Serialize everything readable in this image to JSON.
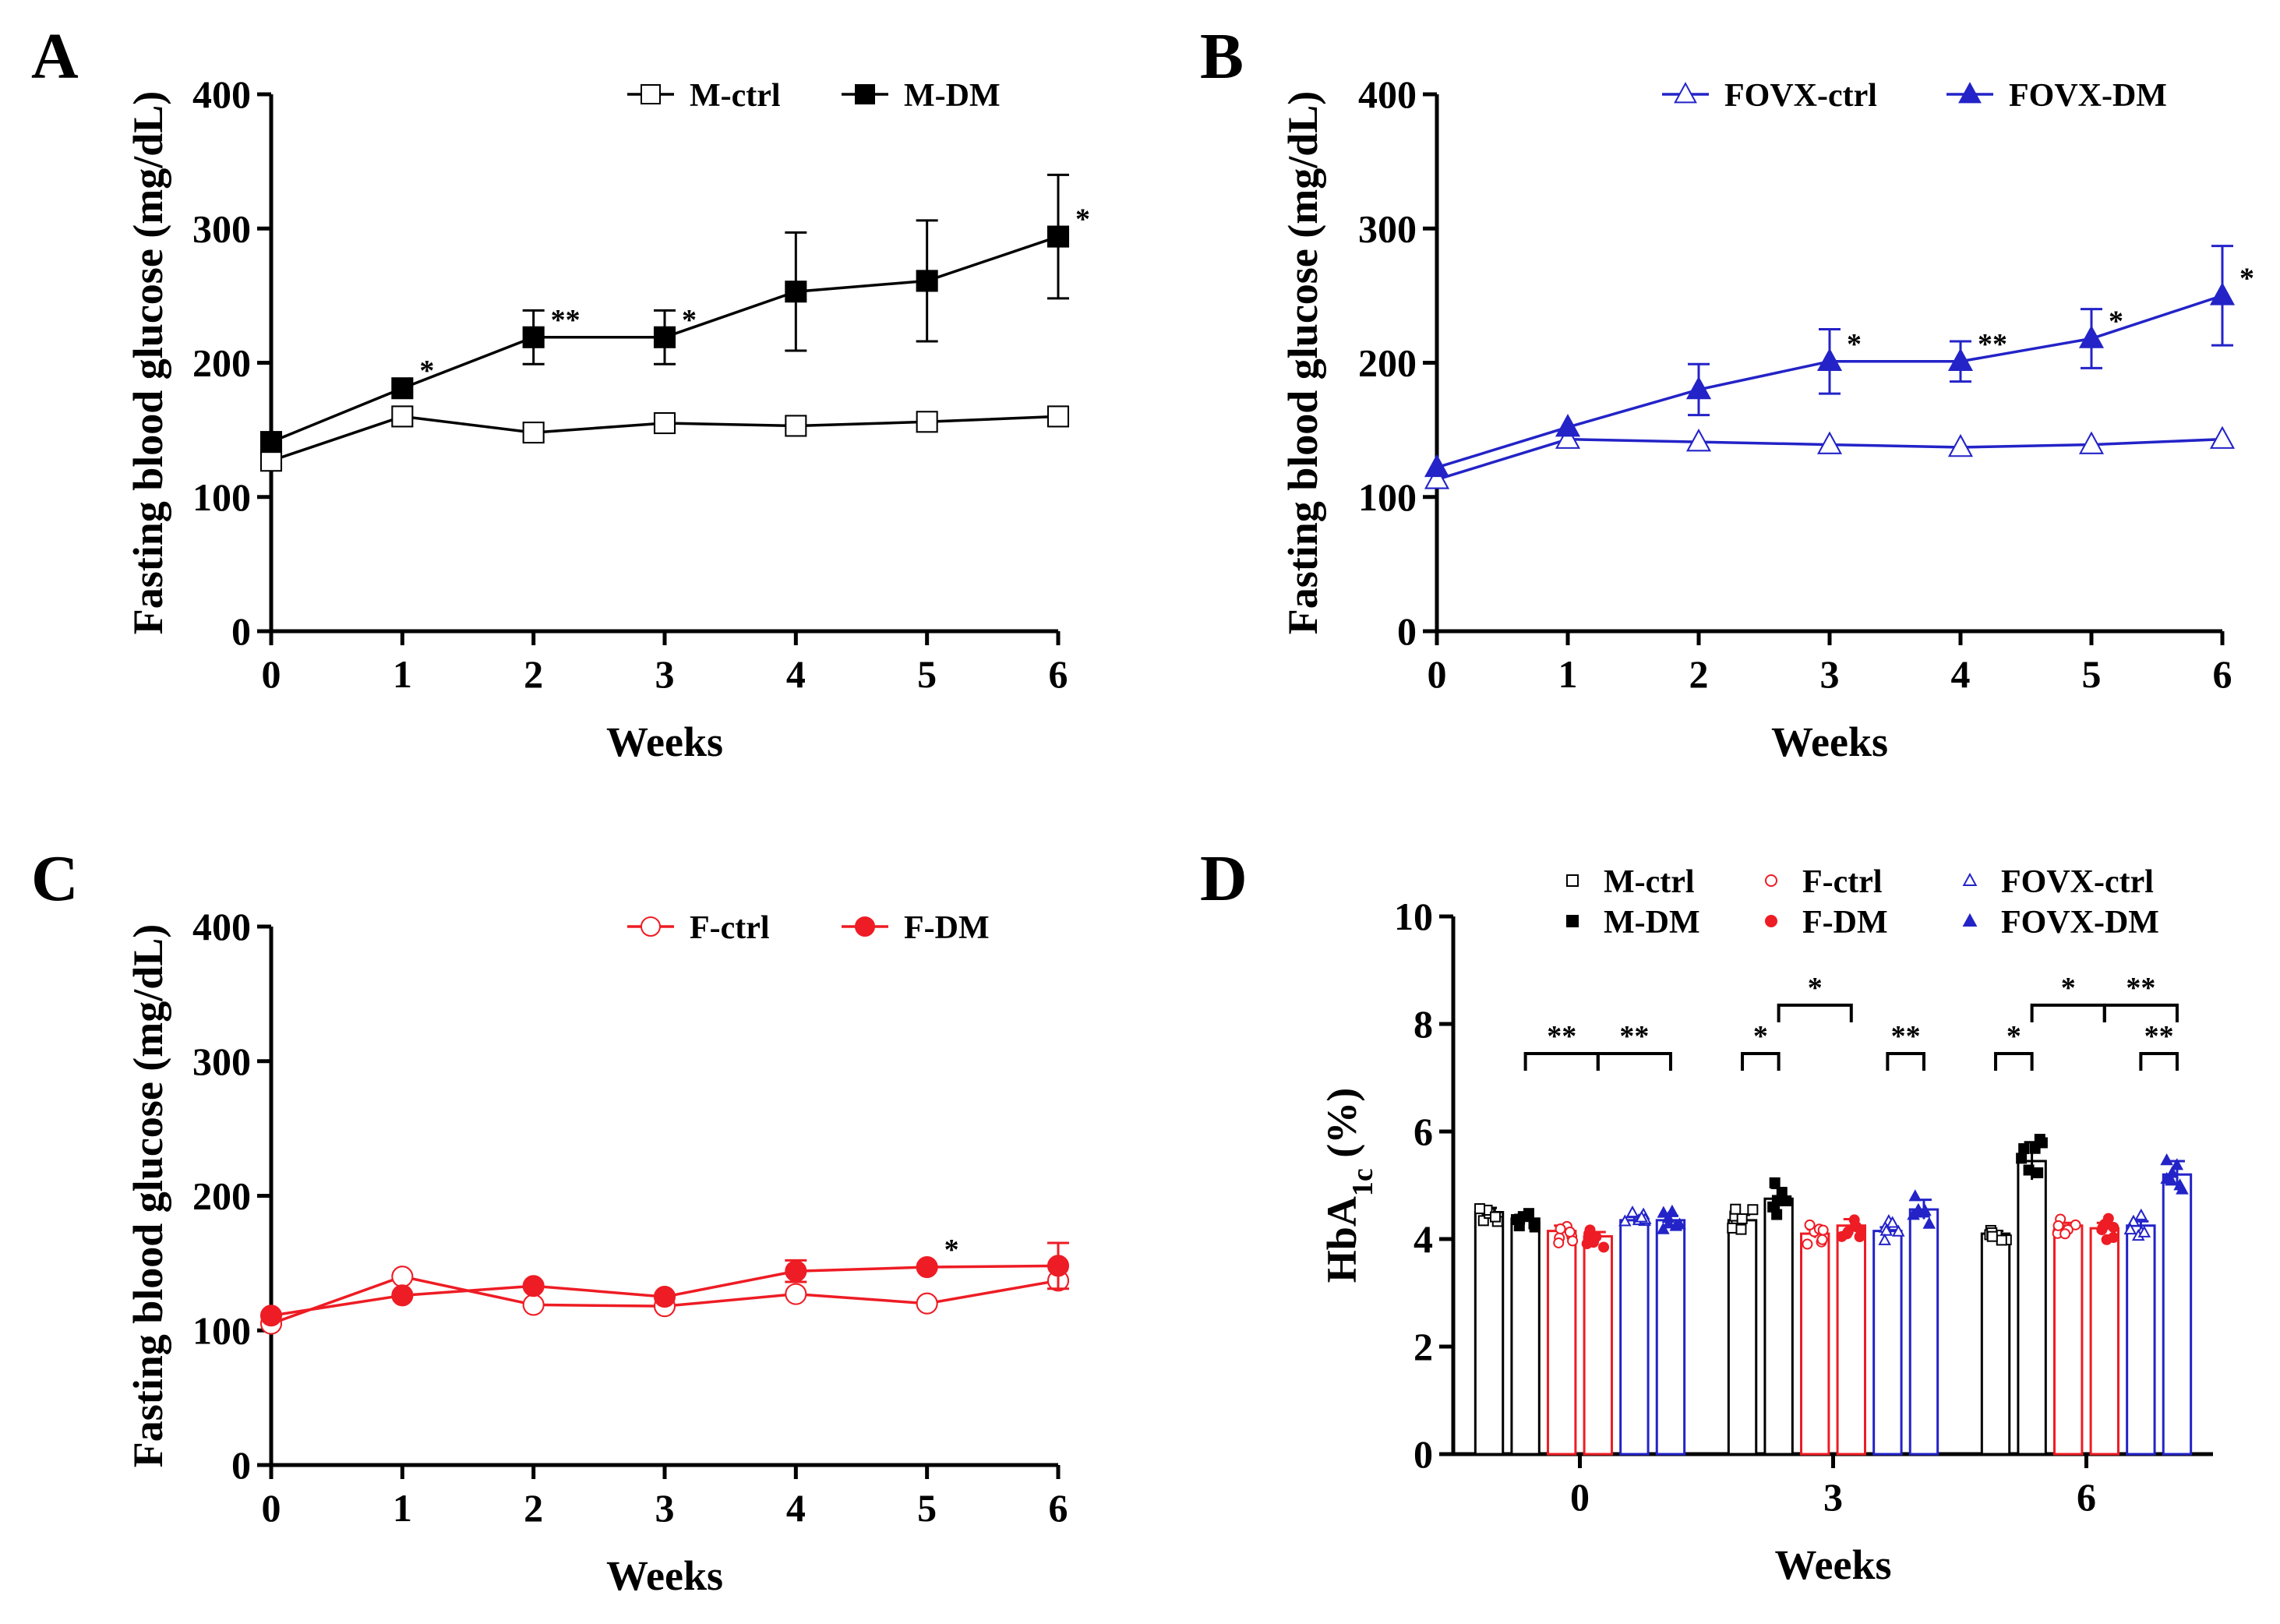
{
  "panels": {
    "A": {
      "letter": "A"
    },
    "B": {
      "letter": "B"
    },
    "C": {
      "letter": "C"
    },
    "D": {
      "letter": "D"
    }
  },
  "chart_data": [
    {
      "panel": "A",
      "type": "line",
      "xlabel": "Weeks",
      "ylabel": "Fasting blood glucose  (mg/dL)",
      "x": [
        0,
        1,
        2,
        3,
        4,
        5,
        6
      ],
      "xlim": [
        0,
        6
      ],
      "ylim": [
        0,
        400
      ],
      "yticks": [
        0,
        100,
        200,
        300,
        400
      ],
      "series": [
        {
          "name": "M-ctrl",
          "marker": "square-open",
          "color": "#000000",
          "values": [
            127,
            160,
            148,
            155,
            153,
            156,
            160
          ],
          "err": [
            4,
            4,
            4,
            4,
            4,
            4,
            4
          ]
        },
        {
          "name": "M-DM",
          "marker": "square-filled",
          "color": "#000000",
          "values": [
            141,
            181,
            219,
            219,
            253,
            261,
            294
          ],
          "err": [
            4,
            4,
            20,
            20,
            44,
            45,
            46
          ]
        }
      ],
      "annotations": [
        {
          "x": 1,
          "y": 181,
          "text": "*"
        },
        {
          "x": 2,
          "y": 219,
          "text": "**"
        },
        {
          "x": 3,
          "y": 219,
          "text": "*"
        },
        {
          "x": 6,
          "y": 294,
          "text": "*"
        }
      ]
    },
    {
      "panel": "B",
      "type": "line",
      "xlabel": "Weeks",
      "ylabel": "Fasting blood glucose  (mg/dL)",
      "x": [
        0,
        1,
        2,
        3,
        4,
        5,
        6
      ],
      "xlim": [
        0,
        6
      ],
      "ylim": [
        0,
        400
      ],
      "yticks": [
        0,
        100,
        200,
        300,
        400
      ],
      "series": [
        {
          "name": "FOVX-ctrl",
          "marker": "triangle-open",
          "color": "#2323c8",
          "values": [
            113,
            143,
            141,
            139,
            137,
            139,
            143
          ],
          "err": [
            3,
            3,
            3,
            3,
            3,
            3,
            3
          ]
        },
        {
          "name": "FOVX-DM",
          "marker": "triangle-filled",
          "color": "#2323c8",
          "values": [
            122,
            152,
            180,
            201,
            201,
            218,
            250
          ],
          "err": [
            3,
            3,
            19,
            24,
            15,
            22,
            37
          ]
        }
      ],
      "annotations": [
        {
          "x": 3,
          "y": 201,
          "text": "*"
        },
        {
          "x": 4,
          "y": 201,
          "text": "**"
        },
        {
          "x": 5,
          "y": 218,
          "text": "*"
        },
        {
          "x": 6,
          "y": 250,
          "text": "*"
        }
      ]
    },
    {
      "panel": "C",
      "type": "line",
      "xlabel": "Weeks",
      "ylabel": "Fasting blood glucose  (mg/dL)",
      "x": [
        0,
        1,
        2,
        3,
        4,
        5,
        6
      ],
      "xlim": [
        0,
        6
      ],
      "ylim": [
        0,
        400
      ],
      "yticks": [
        0,
        100,
        200,
        300,
        400
      ],
      "series": [
        {
          "name": "F-ctrl",
          "marker": "circle-open",
          "color": "#ee1c24",
          "values": [
            105,
            140,
            119,
            118,
            127,
            120,
            137
          ],
          "err": [
            3,
            3,
            3,
            3,
            3,
            3,
            5
          ]
        },
        {
          "name": "F-DM",
          "marker": "circle-filled",
          "color": "#ee1c24",
          "values": [
            111,
            126,
            133,
            125,
            144,
            147,
            148
          ],
          "err": [
            3,
            3,
            3,
            3,
            8,
            3,
            17
          ]
        }
      ],
      "annotations": [
        {
          "x": 5,
          "y": 147,
          "text": "*"
        }
      ]
    },
    {
      "panel": "D",
      "type": "bar",
      "xlabel": "Weeks",
      "ylabel_main": "HbA",
      "ylabel_sub": "1c",
      "ylabel_tail": " (%)",
      "categories": [
        "0",
        "3",
        "6"
      ],
      "ylim": [
        0,
        10
      ],
      "yticks": [
        0,
        2,
        4,
        6,
        8,
        10
      ],
      "series": [
        {
          "name": "M-ctrl",
          "color": "#000000",
          "marker": "square-open",
          "values": [
            4.5,
            4.35,
            4.1
          ],
          "err": [
            0.08,
            0.1,
            0.05
          ]
        },
        {
          "name": "M-DM",
          "color": "#000000",
          "marker": "square-filled",
          "values": [
            4.38,
            4.75,
            5.45
          ],
          "err": [
            0.06,
            0.2,
            0.35
          ]
        },
        {
          "name": "F-ctrl",
          "color": "#ee1c24",
          "marker": "circle-open",
          "values": [
            4.15,
            4.1,
            4.25
          ],
          "err": [
            0.1,
            0.08,
            0.05
          ]
        },
        {
          "name": "F-DM",
          "color": "#ee1c24",
          "marker": "circle-filled",
          "values": [
            4.05,
            4.25,
            4.2
          ],
          "err": [
            0.08,
            0.12,
            0.1
          ]
        },
        {
          "name": "FOVX-ctrl",
          "color": "#2323c8",
          "marker": "triangle-open",
          "values": [
            4.35,
            4.15,
            4.25
          ],
          "err": [
            0.06,
            0.07,
            0.08
          ]
        },
        {
          "name": "FOVX-DM",
          "color": "#2323c8",
          "marker": "triangle-filled",
          "values": [
            4.35,
            4.55,
            5.2
          ],
          "err": [
            0.08,
            0.18,
            0.25
          ]
        }
      ],
      "significance": [
        {
          "category": "0",
          "from": 1,
          "to": 3,
          "text": "**"
        },
        {
          "category": "0",
          "from": 3,
          "to": 5,
          "text": "**"
        },
        {
          "category": "3",
          "from": 0,
          "to": 1,
          "text": "*"
        },
        {
          "category": "3",
          "from": 1,
          "to": 3,
          "text": "*",
          "high": true
        },
        {
          "category": "3",
          "from": 4,
          "to": 5,
          "text": "**"
        },
        {
          "category": "6",
          "from": 0,
          "to": 1,
          "text": "*"
        },
        {
          "category": "6",
          "from": 1,
          "to": 3,
          "text": "*",
          "high": true
        },
        {
          "category": "6",
          "from": 3,
          "to": 5,
          "text": "**",
          "high": true
        },
        {
          "category": "6",
          "from": 4,
          "to": 5,
          "text": "**"
        }
      ]
    }
  ]
}
